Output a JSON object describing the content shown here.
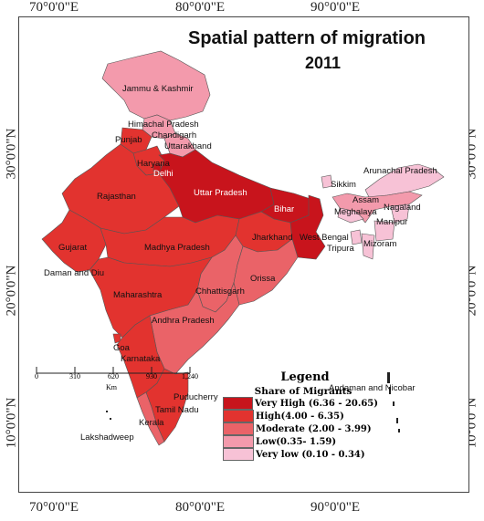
{
  "title": "Spatial pattern of migration",
  "year": "2011",
  "graticule": {
    "top": [
      "70°0'0\"E",
      "80°0'0\"E",
      "90°0'0\"E"
    ],
    "bottom": [
      "70°0'0\"E",
      "80°0'0\"E",
      "90°0'0\"E"
    ],
    "left": [
      "30°0'0\"N",
      "20°0'0\"N",
      "10°0'0\"N"
    ],
    "right": [
      "30°0'0\"N",
      "20°0'0\"N",
      "10°0'0\"N"
    ]
  },
  "legend": {
    "title": "Legend",
    "subtitle": "Share of Migrants",
    "classes": [
      {
        "label": "Very High (6.36 - 20.65)",
        "color": "#c8141c"
      },
      {
        "label": "High(4.00 - 6.35)",
        "color": "#e2332f"
      },
      {
        "label": "Moderate (2.00 - 3.99)",
        "color": "#ea6368"
      },
      {
        "label": "Low(0.35- 1.59)",
        "color": "#f39aac"
      },
      {
        "label": "Very low (0.10 - 0.34)",
        "color": "#f7c2d6"
      }
    ]
  },
  "scale": {
    "ticks": [
      "0",
      "310",
      "620",
      "930",
      "1,240"
    ],
    "unit": "Km"
  },
  "labels": {
    "jk": "Jammu & Kashmir",
    "hp": "Himachal Pradesh",
    "punjab": "Punjab",
    "chandigarh": "Chandigarh",
    "uttarakhand": "Uttarakhand",
    "haryana": "Haryana",
    "delhi": "Delhi",
    "rajasthan": "Rajasthan",
    "up": "Uttar Pradesh",
    "bihar": "Bihar",
    "sikkim": "Sikkim",
    "arunachal": "Arunachal Pradesh",
    "assam": "Assam",
    "nagaland": "Nagaland",
    "meghalaya": "Meghalaya",
    "manipur": "Manipur",
    "mizoram": "Mizoram",
    "tripura": "Tripura",
    "jharkhand": "Jharkhand",
    "wb": "West Bengal",
    "gujarat": "Gujarat",
    "mp": "Madhya Pradesh",
    "daman": "Daman and Diu",
    "orissa": "Orissa",
    "chhattisgarh": "Chhattisgarh",
    "maharashtra": "Maharashtra",
    "goa": "Goa",
    "ap": "Andhra Pradesh",
    "karnataka": "Karnataka",
    "puducherry": "Puducherry",
    "tn": "Tamil Nadu",
    "kerala": "Kerala",
    "lakshadweep": "Lakshadweep",
    "andaman": "Andaman and Nicobar"
  },
  "state_class": {
    "up": "Very High",
    "bihar": "Very High",
    "wb": "Very High",
    "delhi": "Very High",
    "rajasthan": "High",
    "mp": "High",
    "maharashtra": "High",
    "gujarat": "High",
    "haryana": "High",
    "punjab": "High",
    "jharkhand": "High",
    "karnataka": "High",
    "tn": "High",
    "ap": "Moderate",
    "orissa": "Moderate",
    "chhattisgarh": "Moderate",
    "kerala": "Moderate",
    "jk": "Low",
    "hp": "Low",
    "uttarakhand": "Low",
    "assam": "Low",
    "sikkim": "Very low",
    "arunachal": "Very low",
    "nagaland": "Very low",
    "meghalaya": "Very low",
    "manipur": "Very low",
    "mizoram": "Very low",
    "tripura": "Very low"
  }
}
